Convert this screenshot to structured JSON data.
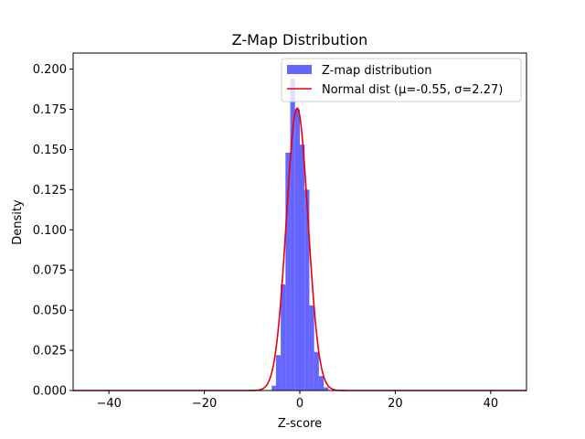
{
  "chart_data": {
    "type": "bar",
    "title": "Z-Map Distribution",
    "xlabel": "Z-score",
    "ylabel": "Density",
    "xlim": [
      -47.5,
      47.5
    ],
    "ylim": [
      0,
      0.21
    ],
    "xticks": [
      -40,
      -20,
      0,
      20,
      40
    ],
    "xtick_labels": [
      "−40",
      "−20",
      "0",
      "20",
      "40"
    ],
    "yticks": [
      0.0,
      0.025,
      0.05,
      0.075,
      0.1,
      0.125,
      0.15,
      0.175,
      0.2
    ],
    "ytick_labels": [
      "0.000",
      "0.025",
      "0.050",
      "0.075",
      "0.100",
      "0.125",
      "0.150",
      "0.175",
      "0.200"
    ],
    "legend_position": "top-right",
    "histogram": {
      "name": "Z-map distribution",
      "color": "#6666ff",
      "bin_edges": [
        -5.9,
        -5.0,
        -4.0,
        -3.0,
        -2.0,
        -1.0,
        0.0,
        1.0,
        2.0,
        3.0,
        4.0,
        5.0,
        6.0
      ],
      "values": [
        0.003,
        0.022,
        0.066,
        0.148,
        0.194,
        0.175,
        0.153,
        0.125,
        0.053,
        0.024,
        0.009,
        0.002
      ]
    },
    "normal_curve": {
      "name": "Normal dist (μ=-0.55, σ=2.27)",
      "color": "#e8000b",
      "mu": -0.55,
      "sigma": 2.27
    }
  }
}
